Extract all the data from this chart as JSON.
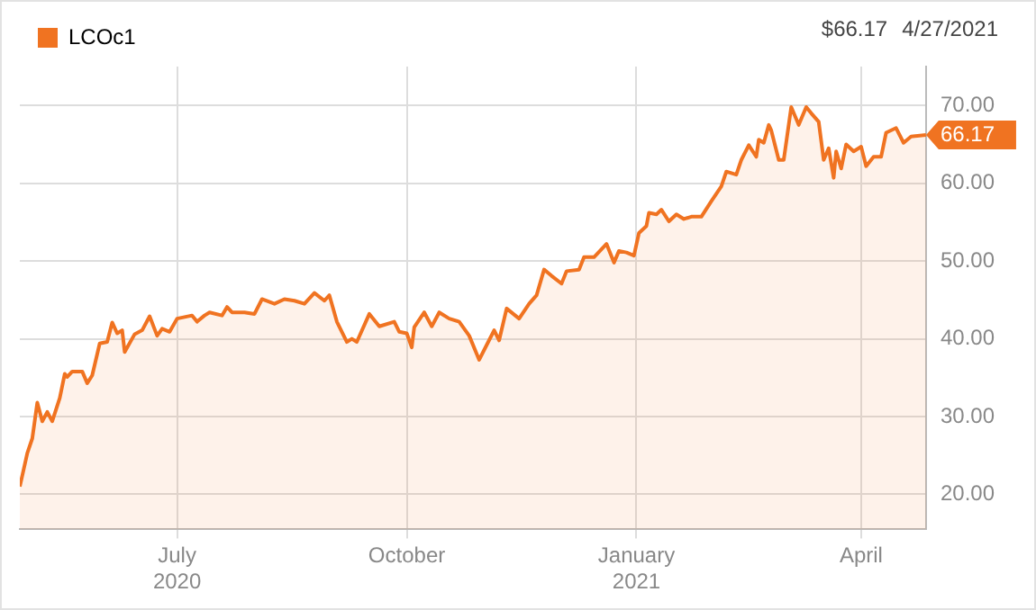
{
  "chart_data": {
    "type": "area",
    "legend": "top left",
    "grid": true,
    "line_style": "solid",
    "marker": "none",
    "x": [
      "2020-04-29",
      "2020-05-02",
      "2020-05-04",
      "2020-05-06",
      "2020-05-08",
      "2020-05-10",
      "2020-05-12",
      "2020-05-15",
      "2020-05-17",
      "2020-05-18",
      "2020-05-20",
      "2020-05-24",
      "2020-05-26",
      "2020-05-28",
      "2020-05-31",
      "2020-06-03",
      "2020-06-05",
      "2020-06-07",
      "2020-06-09",
      "2020-06-10",
      "2020-06-14",
      "2020-06-17",
      "2020-06-20",
      "2020-06-23",
      "2020-06-25",
      "2020-06-28",
      "2020-07-01",
      "2020-07-07",
      "2020-07-09",
      "2020-07-12",
      "2020-07-14",
      "2020-07-19",
      "2020-07-21",
      "2020-07-23",
      "2020-07-28",
      "2020-08-01",
      "2020-08-04",
      "2020-08-09",
      "2020-08-13",
      "2020-08-17",
      "2020-08-21",
      "2020-08-25",
      "2020-08-29",
      "2020-08-31",
      "2020-09-03",
      "2020-09-07",
      "2020-09-09",
      "2020-09-11",
      "2020-09-16",
      "2020-09-20",
      "2020-09-26",
      "2020-09-28",
      "2020-10-01",
      "2020-10-03",
      "2020-10-04",
      "2020-10-08",
      "2020-10-11",
      "2020-10-14",
      "2020-10-18",
      "2020-10-22",
      "2020-10-26",
      "2020-10-30",
      "2020-11-02",
      "2020-11-05",
      "2020-11-07",
      "2020-11-10",
      "2020-11-15",
      "2020-11-19",
      "2020-11-22",
      "2020-11-25",
      "2020-11-28",
      "2020-12-02",
      "2020-12-04",
      "2020-12-09",
      "2020-12-11",
      "2020-12-15",
      "2020-12-20",
      "2020-12-23",
      "2020-12-25",
      "2020-12-28",
      "2020-12-31",
      "2021-01-02",
      "2021-01-05",
      "2021-01-06",
      "2021-01-09",
      "2021-01-11",
      "2021-01-14",
      "2021-01-17",
      "2021-01-20",
      "2021-01-23",
      "2021-01-27",
      "2021-01-31",
      "2021-02-04",
      "2021-02-06",
      "2021-02-10",
      "2021-02-12",
      "2021-02-15",
      "2021-02-18",
      "2021-02-19",
      "2021-02-21",
      "2021-02-23",
      "2021-02-24",
      "2021-02-27",
      "2021-03-01",
      "2021-03-04",
      "2021-03-07",
      "2021-03-10",
      "2021-03-12",
      "2021-03-15",
      "2021-03-17",
      "2021-03-19",
      "2021-03-21",
      "2021-03-22",
      "2021-03-24",
      "2021-03-26",
      "2021-03-29",
      "2021-04-01",
      "2021-04-03",
      "2021-04-06",
      "2021-04-09",
      "2021-04-11",
      "2021-04-15",
      "2021-04-18",
      "2021-04-21",
      "2021-04-27"
    ],
    "series": [
      {
        "name": "LCOc1",
        "color": "#f07321",
        "values": [
          21.0,
          25.3,
          27.2,
          31.8,
          29.4,
          30.6,
          29.4,
          32.4,
          35.5,
          35.1,
          35.8,
          35.8,
          34.3,
          35.3,
          39.4,
          39.6,
          42.1,
          40.7,
          41.1,
          38.3,
          40.6,
          41.1,
          42.9,
          40.4,
          41.3,
          40.9,
          42.6,
          43.0,
          42.2,
          43.0,
          43.4,
          43.0,
          44.1,
          43.4,
          43.4,
          43.2,
          45.1,
          44.5,
          45.1,
          44.9,
          44.5,
          45.9,
          44.9,
          45.6,
          42.2,
          39.6,
          40.0,
          39.6,
          43.2,
          41.6,
          42.2,
          40.9,
          40.7,
          38.9,
          41.5,
          43.4,
          41.6,
          43.4,
          42.6,
          42.2,
          40.4,
          37.3,
          39.2,
          41.1,
          39.8,
          43.9,
          42.6,
          44.5,
          45.6,
          48.9,
          48.1,
          47.1,
          48.7,
          48.9,
          50.5,
          50.5,
          52.2,
          49.8,
          51.3,
          51.1,
          50.7,
          53.6,
          54.5,
          56.2,
          56.0,
          56.6,
          55.1,
          56.0,
          55.4,
          55.7,
          55.7,
          57.7,
          59.6,
          61.5,
          61.1,
          63.0,
          64.9,
          63.4,
          65.6,
          65.2,
          67.5,
          66.8,
          63.0,
          63.0,
          69.8,
          67.5,
          69.8,
          69.0,
          67.9,
          63.0,
          64.5,
          60.7,
          64.1,
          61.9,
          65.0,
          64.1,
          64.7,
          62.2,
          63.4,
          63.4,
          66.5,
          67.1,
          65.2,
          66.0,
          66.2
        ]
      }
    ],
    "xlim": [
      "2020-04-29",
      "2021-04-27"
    ],
    "xticks": [
      {
        "value": "2020-07-01",
        "label": "July 2020"
      },
      {
        "value": "2020-10-01",
        "label": "October"
      },
      {
        "value": "2021-01-01",
        "label": "January 2021"
      },
      {
        "value": "2021-04-01",
        "label": "April"
      }
    ],
    "ylim": [
      15.5,
      75
    ],
    "yticks": [
      {
        "value": 20,
        "label": "20.00"
      },
      {
        "value": 30,
        "label": "30.00"
      },
      {
        "value": 40,
        "label": "40.00"
      },
      {
        "value": 50,
        "label": "50.00"
      },
      {
        "value": 60,
        "label": "60.00"
      },
      {
        "value": 70,
        "label": "70.00"
      }
    ],
    "annotations": [
      "$66.17",
      "4/27/2021",
      "66.17"
    ]
  }
}
